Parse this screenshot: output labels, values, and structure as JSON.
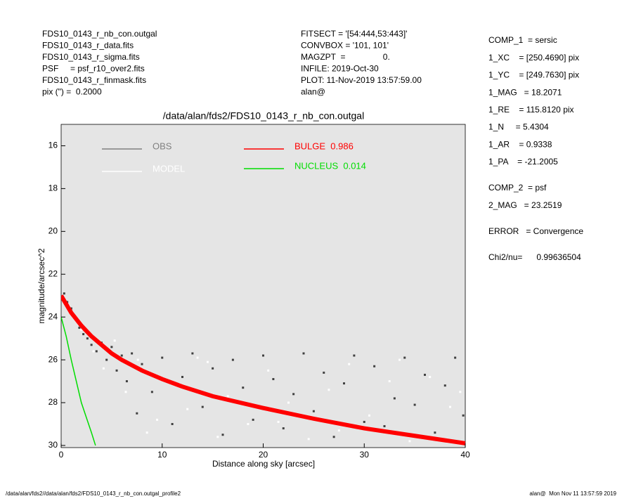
{
  "header_left": [
    "FDS10_0143_r_nb_con.outgal",
    "FDS10_0143_r_data.fits",
    "FDS10_0143_r_sigma.fits",
    "PSF     = psf_r10_over2.fits",
    "FDS10_0143_r_finmask.fits",
    "pix (\") =  0.2000"
  ],
  "header_mid": [
    "FITSECT = '[54:444,53:443]'",
    "CONVBOX = '101, 101'",
    "MAGZPT  =                0.",
    "INFILE: 2019-Oct-30",
    "PLOT: 11-Nov-2019 13:57:59.00",
    "alan@"
  ],
  "params": [
    [
      "COMP_1  = sersic",
      "1_XC    = [250.4690] pix",
      "1_YC    = [249.7630] pix",
      "1_MAG   = 18.2071",
      "1_RE    = 115.8120 pix",
      "1_N     = 5.4304",
      "1_AR    = 0.9338",
      "1_PA    = -21.2005"
    ],
    [
      "COMP_2  = psf",
      "2_MAG   = 23.2519"
    ],
    [
      "ERROR   = Convergence"
    ],
    [
      "Chi2/nu=      0.99636504"
    ]
  ],
  "footer_left": "/data/alan/fds2//data/alan/fds2/FDS10_0143_r_nb_con.outgal_profile2",
  "footer_right": "alan@  Mon Nov 11 13:57:59 2019",
  "chart_data": {
    "type": "line",
    "title": "/data/alan/fds2/FDS10_0143_r_nb_con.outgal",
    "x_label": "Distance along sky [arcsec]",
    "y_label": "magnitude/arcsec^2",
    "xlim": [
      0,
      40
    ],
    "xticks": [
      0,
      10,
      20,
      30,
      40
    ],
    "ylim": [
      15,
      30.1
    ],
    "yticks": [
      16,
      18,
      20,
      22,
      24,
      26,
      28,
      30
    ],
    "y_inverted": true,
    "series": [
      {
        "name": "OBS",
        "type": "scatter",
        "color": "#404040",
        "legend_color": "#808080",
        "x": [
          0.3,
          0.6,
          1,
          1.4,
          1.8,
          2.2,
          2.6,
          3,
          3.5,
          4,
          4.5,
          5,
          5.5,
          6,
          6.5,
          7,
          7.5,
          8,
          9,
          10,
          11,
          12,
          13,
          14,
          15,
          16,
          17,
          18,
          19,
          20,
          21,
          22,
          23,
          24,
          25,
          26,
          27,
          28,
          29,
          30,
          31,
          32,
          33,
          34,
          35,
          36,
          37,
          38,
          39,
          39.8
        ],
        "values": [
          22.9,
          23.3,
          23.6,
          24.0,
          24.5,
          24.8,
          25.0,
          25.3,
          25.6,
          25.2,
          26.0,
          25.4,
          26.5,
          25.8,
          27.0,
          25.7,
          28.5,
          26.2,
          27.5,
          25.9,
          29.0,
          26.8,
          25.7,
          28.2,
          26.4,
          29.5,
          26.0,
          27.3,
          28.8,
          25.8,
          26.9,
          29.2,
          27.6,
          25.7,
          28.4,
          26.6,
          29.6,
          27.1,
          25.8,
          28.9,
          26.3,
          29.1,
          27.8,
          25.9,
          28.1,
          26.7,
          29.4,
          27.2,
          25.9,
          28.6
        ]
      },
      {
        "name": "MODEL",
        "type": "scatter",
        "color": "#ffffff",
        "legend_color": "#ffffff",
        "x": [
          0.8,
          2,
          3.2,
          4.2,
          5.3,
          6.4,
          7.6,
          8.5,
          10.5,
          12.5,
          14.5,
          16.5,
          18.5,
          20.5,
          22.5,
          24.5,
          26.5,
          28.5,
          30.5,
          32.5,
          34.5,
          36.5,
          38.5,
          39.5,
          15.5,
          21.5,
          27.5,
          33.5,
          9.5,
          13.5
        ],
        "values": [
          23.5,
          24.6,
          25.6,
          26.4,
          25.1,
          27.5,
          26.0,
          29.4,
          27.0,
          28.3,
          26.1,
          27.7,
          29.0,
          26.5,
          28.0,
          29.7,
          27.4,
          26.2,
          28.6,
          27.0,
          29.8,
          26.8,
          28.2,
          27.5,
          29.6,
          28.9,
          29.3,
          26.0,
          28.8,
          25.9
        ]
      },
      {
        "name": "BULGE  0.986",
        "type": "line",
        "color": "#ff0000",
        "width": 6,
        "x": [
          0,
          1,
          2,
          3,
          4,
          5,
          6,
          8,
          10,
          12,
          15,
          20,
          25,
          30,
          35,
          40
        ],
        "values": [
          23.0,
          23.8,
          24.4,
          24.9,
          25.3,
          25.7,
          26.0,
          26.5,
          26.9,
          27.25,
          27.7,
          28.25,
          28.75,
          29.2,
          29.55,
          29.9
        ]
      },
      {
        "name": "NUCLEUS  0.014",
        "type": "line",
        "color": "#00dd00",
        "width": 1.5,
        "x": [
          0,
          0.5,
          1,
          1.5,
          2,
          2.5,
          3,
          3.4
        ],
        "values": [
          24.0,
          24.9,
          26.0,
          27.0,
          28.0,
          28.7,
          29.4,
          30.0
        ]
      }
    ]
  }
}
